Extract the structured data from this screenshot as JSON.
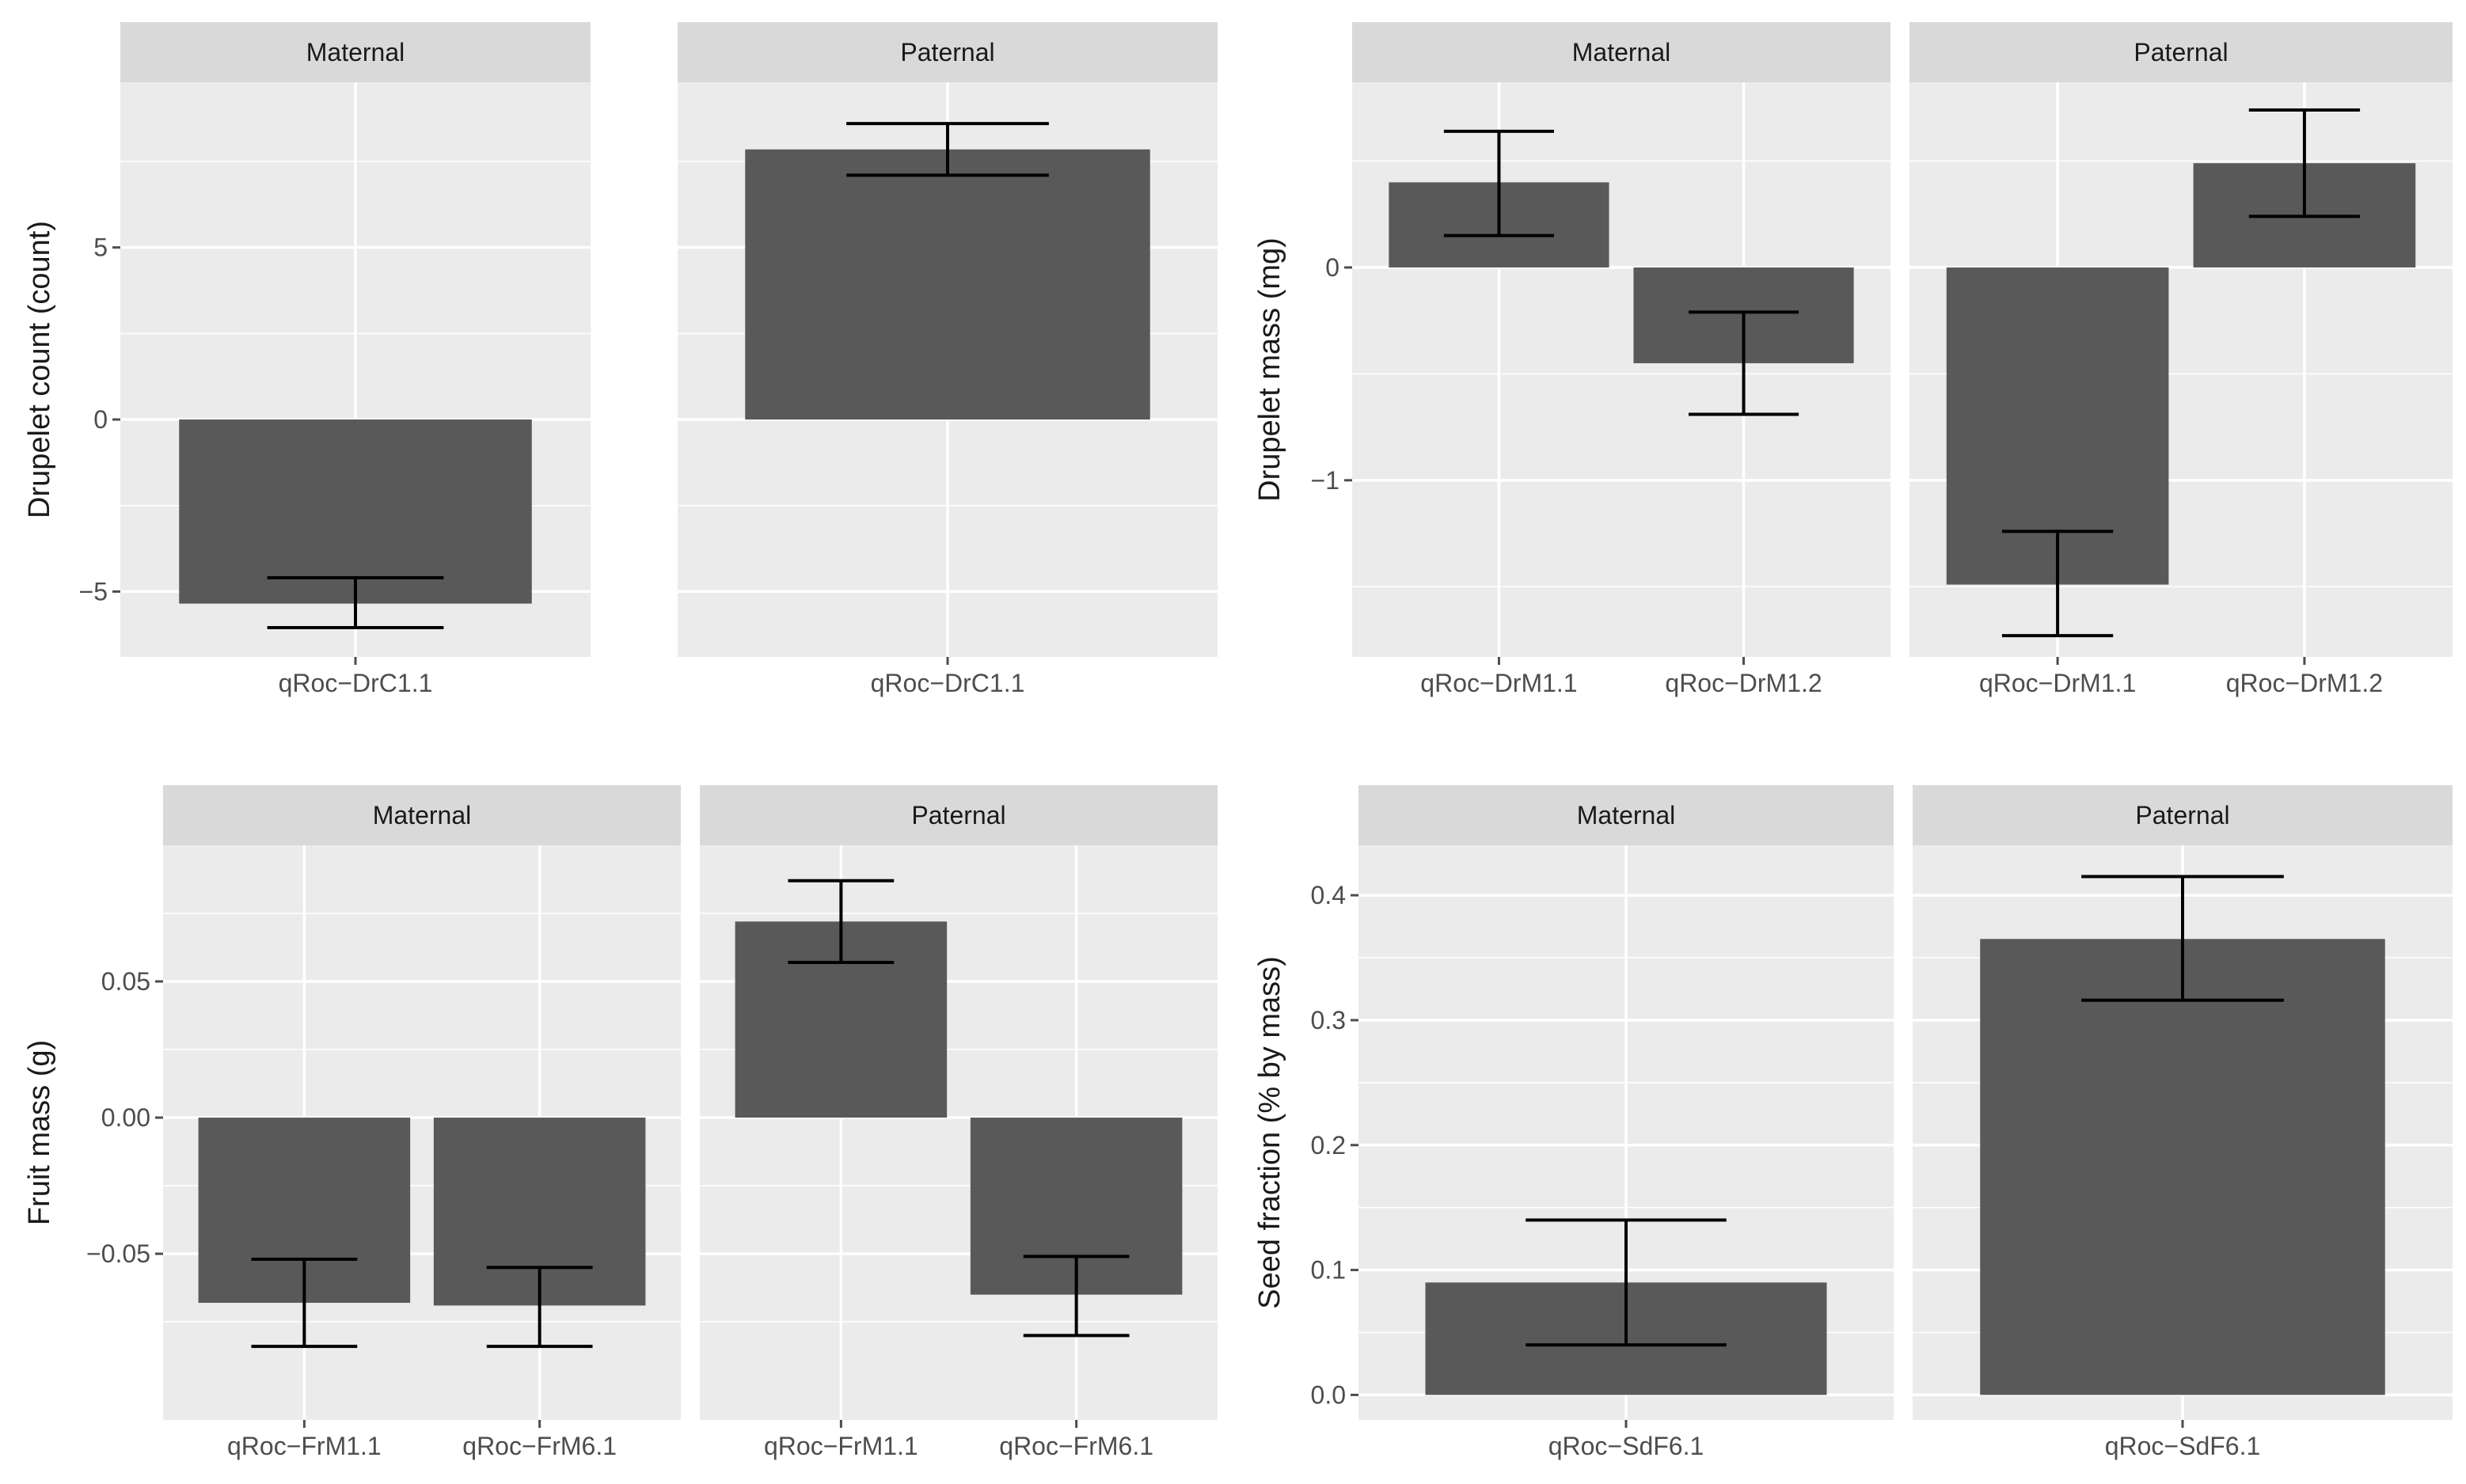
{
  "style": {
    "panel_bg": "#EBEBEB",
    "strip_bg": "#D9D9D9",
    "bar_fill": "#595959",
    "grid_color": "#FFFFFF",
    "text_color": "#1A1A1A",
    "axis_text_color": "#4D4D4D",
    "errorbar_color": "#000000"
  },
  "chart_data": [
    {
      "id": "drupelet-count",
      "type": "bar",
      "ylabel": "Drupelet count (count)",
      "ylim": [
        -6.9,
        9.8
      ],
      "yticks": [
        -5,
        0,
        5
      ],
      "yticklabels": [
        "−5",
        "0",
        "5"
      ],
      "grid": true,
      "facets": [
        {
          "strip": "Maternal",
          "categories": [
            "qRoc−DrC1.1"
          ],
          "values": [
            -5.35
          ],
          "error_low": [
            -6.05
          ],
          "error_high": [
            -4.6
          ]
        },
        {
          "strip": "Paternal",
          "categories": [
            "qRoc−DrC1.1"
          ],
          "values": [
            7.85
          ],
          "error_low": [
            7.1
          ],
          "error_high": [
            8.6
          ]
        }
      ]
    },
    {
      "id": "drupelet-mass",
      "type": "bar",
      "ylabel": "Drupelet mass (mg)",
      "ylim": [
        -1.83,
        0.87
      ],
      "yticks": [
        -1,
        0
      ],
      "yticklabels": [
        "−1",
        "0"
      ],
      "grid": true,
      "facets": [
        {
          "strip": "Maternal",
          "categories": [
            "qRoc−DrM1.1",
            "qRoc−DrM1.2"
          ],
          "values": [
            0.4,
            -0.45
          ],
          "error_low": [
            0.15,
            -0.69
          ],
          "error_high": [
            0.64,
            -0.21
          ]
        },
        {
          "strip": "Paternal",
          "categories": [
            "qRoc−DrM1.1",
            "qRoc−DrM1.2"
          ],
          "values": [
            -1.49,
            0.49
          ],
          "error_low": [
            -1.73,
            0.24
          ],
          "error_high": [
            -1.24,
            0.74
          ]
        }
      ]
    },
    {
      "id": "fruit-mass",
      "type": "bar",
      "ylabel": "Fruit mass (g)",
      "ylim": [
        -0.111,
        0.1
      ],
      "yticks": [
        -0.05,
        0,
        0.05
      ],
      "yticklabels": [
        "−0.05",
        "0.00",
        "0.05"
      ],
      "grid": true,
      "facets": [
        {
          "strip": "Maternal",
          "categories": [
            "qRoc−FrM1.1",
            "qRoc−FrM6.1"
          ],
          "values": [
            -0.068,
            -0.069
          ],
          "error_low": [
            -0.084,
            -0.084
          ],
          "error_high": [
            -0.052,
            -0.055
          ]
        },
        {
          "strip": "Paternal",
          "categories": [
            "qRoc−FrM1.1",
            "qRoc−FrM6.1"
          ],
          "values": [
            0.072,
            -0.065
          ],
          "error_low": [
            0.057,
            -0.08
          ],
          "error_high": [
            0.087,
            -0.051
          ]
        }
      ]
    },
    {
      "id": "seed-fraction",
      "type": "bar",
      "ylabel": "Seed fraction (% by mass)",
      "ylim": [
        -0.02,
        0.44
      ],
      "yticks": [
        0,
        0.1,
        0.2,
        0.3,
        0.4
      ],
      "yticklabels": [
        "0.0",
        "0.1",
        "0.2",
        "0.3",
        "0.4"
      ],
      "grid": true,
      "facets": [
        {
          "strip": "Maternal",
          "categories": [
            "qRoc−SdF6.1"
          ],
          "values": [
            0.09
          ],
          "error_low": [
            0.04
          ],
          "error_high": [
            0.14
          ]
        },
        {
          "strip": "Paternal",
          "categories": [
            "qRoc−SdF6.1"
          ],
          "values": [
            0.365
          ],
          "error_low": [
            0.316
          ],
          "error_high": [
            0.415
          ]
        }
      ]
    }
  ]
}
